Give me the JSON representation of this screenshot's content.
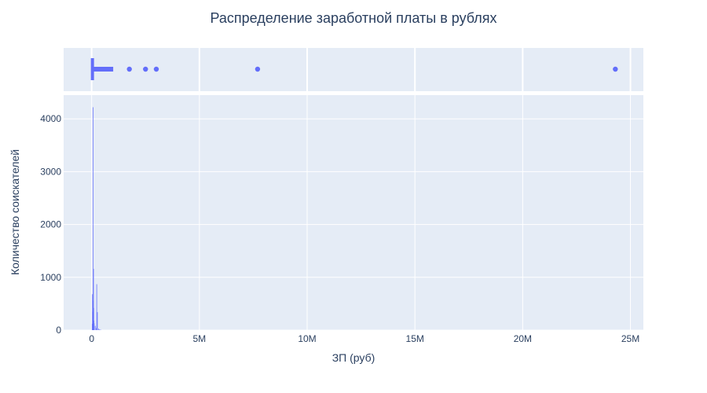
{
  "chart_data": {
    "type": "bar",
    "title": "Распределение заработной платы в рублях",
    "xlabel": "ЗП (руб)",
    "ylabel": "Количество соискателей",
    "xlim": [
      -1300000,
      25600000
    ],
    "ylim": [
      0,
      4450
    ],
    "x_ticks": [
      {
        "value": 0,
        "label": "0"
      },
      {
        "value": 5000000,
        "label": "5M"
      },
      {
        "value": 10000000,
        "label": "10M"
      },
      {
        "value": 15000000,
        "label": "15M"
      },
      {
        "value": 20000000,
        "label": "20M"
      },
      {
        "value": 25000000,
        "label": "25M"
      }
    ],
    "y_ticks": [
      {
        "value": 0,
        "label": "0"
      },
      {
        "value": 1000,
        "label": "1000"
      },
      {
        "value": 2000,
        "label": "2000"
      },
      {
        "value": 3000,
        "label": "3000"
      },
      {
        "value": 4000,
        "label": "4000"
      }
    ],
    "histogram": {
      "bin_width": 10000,
      "bins": [
        {
          "x": 10000,
          "count": 120
        },
        {
          "x": 20000,
          "count": 680
        },
        {
          "x": 30000,
          "count": 350
        },
        {
          "x": 40000,
          "count": 250
        },
        {
          "x": 50000,
          "count": 4220
        },
        {
          "x": 60000,
          "count": 560
        },
        {
          "x": 70000,
          "count": 1160
        },
        {
          "x": 80000,
          "count": 420
        },
        {
          "x": 90000,
          "count": 180
        },
        {
          "x": 100000,
          "count": 130
        },
        {
          "x": 150000,
          "count": 80
        },
        {
          "x": 200000,
          "count": 40
        },
        {
          "x": 220000,
          "count": 870
        },
        {
          "x": 250000,
          "count": 340
        },
        {
          "x": 300000,
          "count": 30
        },
        {
          "x": 350000,
          "count": 15
        },
        {
          "x": 400000,
          "count": 8
        }
      ]
    },
    "box_plot": {
      "dense_range": [
        0,
        1000000
      ],
      "outliers": [
        1750000,
        2500000,
        3000000,
        7700000,
        24300000
      ]
    },
    "grid": true,
    "colors": {
      "bar": "#636efa",
      "plot_bg": "#e5ecf6",
      "grid": "#ffffff",
      "text": "#2a3f5f"
    }
  }
}
